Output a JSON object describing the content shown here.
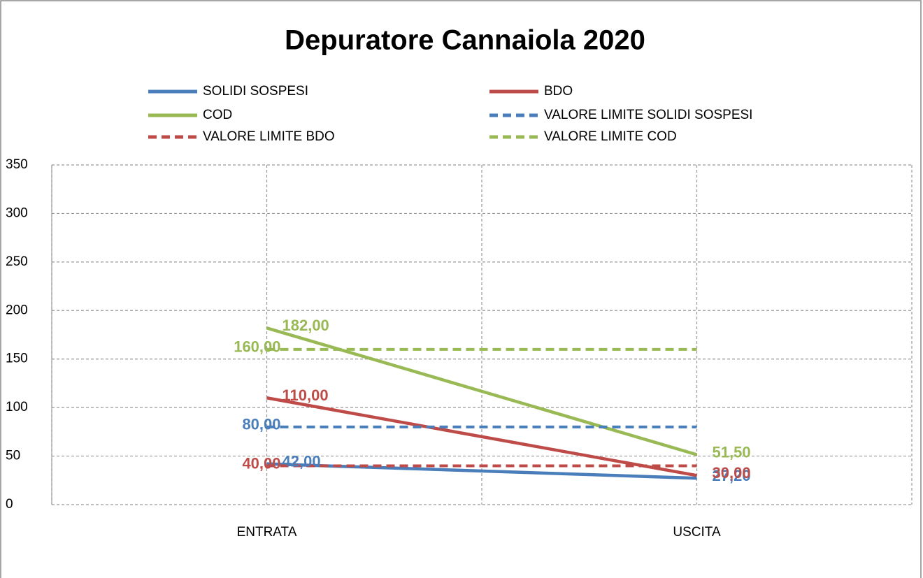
{
  "chart_data": {
    "type": "line",
    "title": "Depuratore Cannaiola 2020",
    "categories": [
      "ENTRATA",
      "USCITA"
    ],
    "series": [
      {
        "name": "SOLIDI SOSPESI",
        "color": "#4a7ebb",
        "dash": false,
        "values": [
          42,
          27.2
        ],
        "value_labels": [
          "42,00",
          "27,20"
        ]
      },
      {
        "name": "BDO",
        "color": "#be4b48",
        "dash": false,
        "values": [
          110,
          30
        ],
        "value_labels": [
          "110,00",
          "30,00"
        ]
      },
      {
        "name": "COD",
        "color": "#98b954",
        "dash": false,
        "values": [
          182,
          51.5
        ],
        "value_labels": [
          "182,00",
          "51,50"
        ]
      },
      {
        "name": "VALORE LIMITE SOLIDI SOSPESI",
        "color": "#4a7ebb",
        "dash": true,
        "values": [
          80,
          80
        ],
        "value_labels": [
          "80,00",
          null
        ]
      },
      {
        "name": "VALORE LIMITE BDO",
        "color": "#be4b48",
        "dash": true,
        "values": [
          40,
          40
        ],
        "value_labels": [
          "40,00",
          null
        ]
      },
      {
        "name": "VALORE LIMITE COD",
        "color": "#98b954",
        "dash": true,
        "values": [
          160,
          160
        ],
        "value_labels": [
          "160,00",
          null
        ]
      }
    ],
    "ylim": [
      0,
      350
    ],
    "yticks": [
      0,
      50,
      100,
      150,
      200,
      250,
      300,
      350
    ],
    "grid": true
  }
}
